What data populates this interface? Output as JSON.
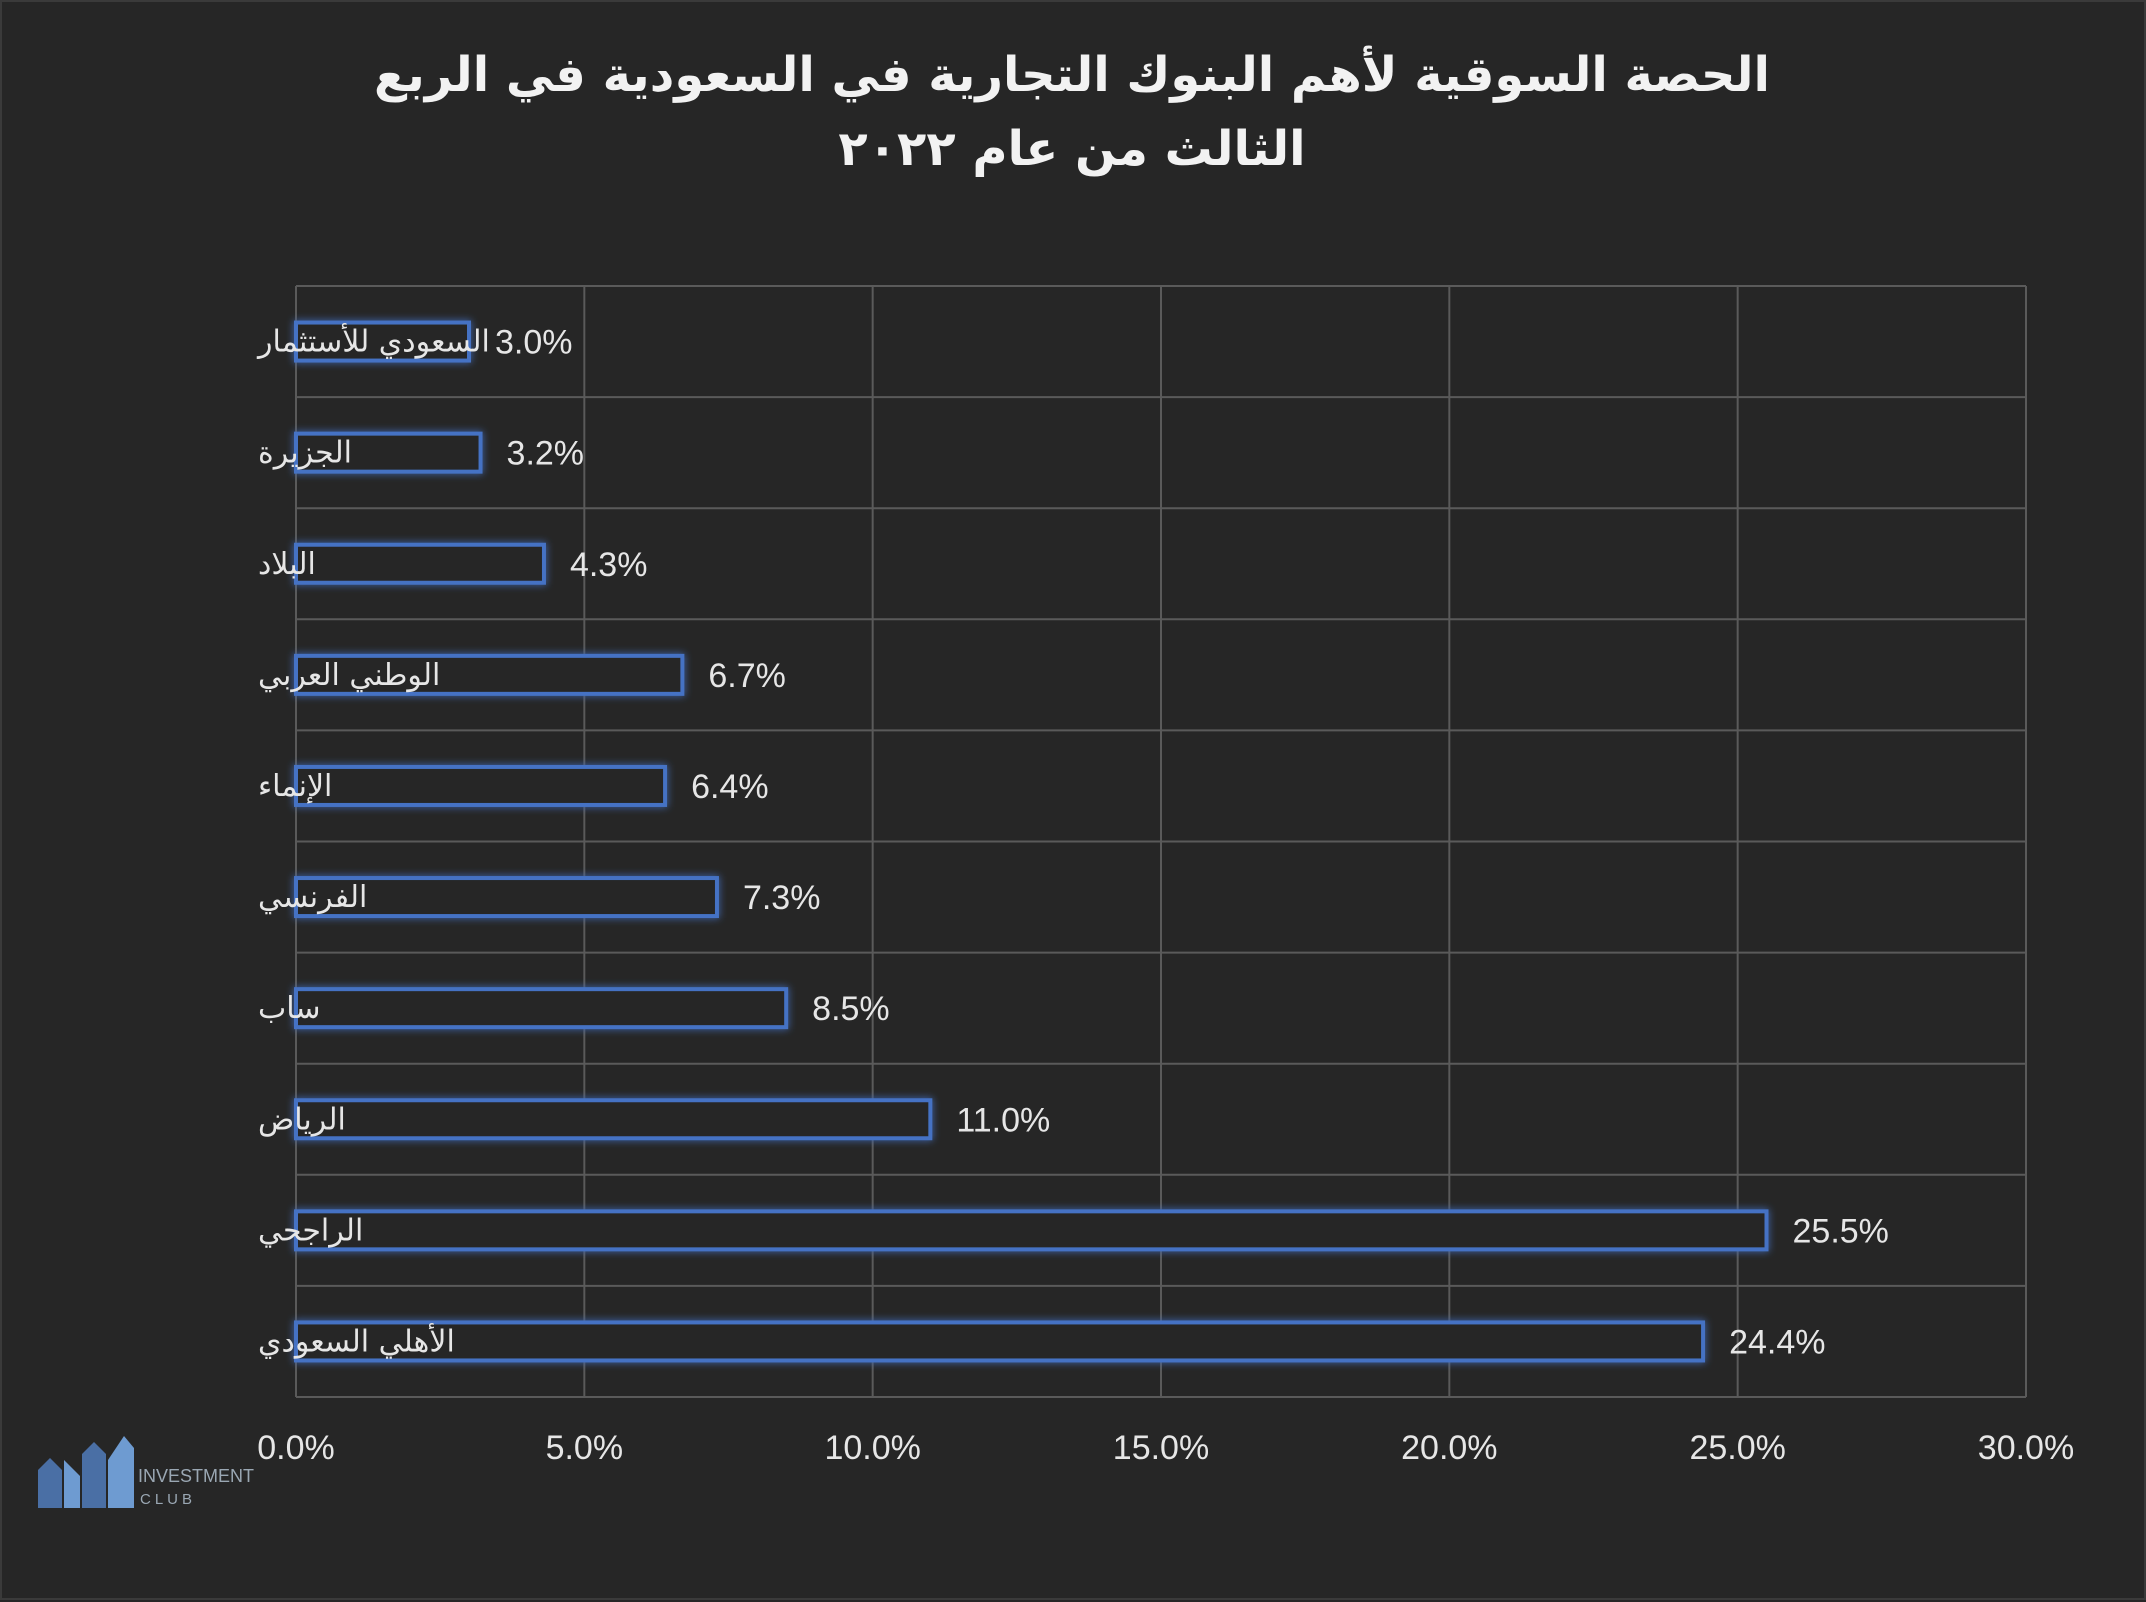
{
  "chart_data": {
    "type": "bar",
    "orientation": "horizontal",
    "title": "الحصة السوقية لأهم البنوك التجارية في السعودية في الربع الثالث من عام ٢٠٢٢",
    "categories": [
      "السعودي للأستثمار",
      "الجزيرة",
      "البلاد",
      "الوطني العربي",
      "الإنماء",
      "الفرنسي",
      "ساب",
      "الرياض",
      "الراجحي",
      "الأهلي السعودي"
    ],
    "values": [
      3.0,
      3.2,
      4.3,
      6.7,
      6.4,
      7.3,
      8.5,
      11.0,
      25.5,
      24.4
    ],
    "value_labels": [
      "3.0%",
      "3.2%",
      "4.3%",
      "6.7%",
      "6.4%",
      "7.3%",
      "8.5%",
      "11.0%",
      "25.5%",
      "24.4%"
    ],
    "x_ticks": [
      "0.0%",
      "5.0%",
      "10.0%",
      "15.0%",
      "20.0%",
      "25.0%",
      "30.0%"
    ],
    "xlim": [
      0,
      30
    ],
    "xlabel": "",
    "ylabel": "",
    "grid": true,
    "colors": {
      "bar_outline": "#4472c4",
      "background": "#262626",
      "text": "#e6e6e6",
      "grid": "#5a5a5a"
    }
  },
  "logo": {
    "line1": "INVESTMENT",
    "line2": "CLUB"
  }
}
